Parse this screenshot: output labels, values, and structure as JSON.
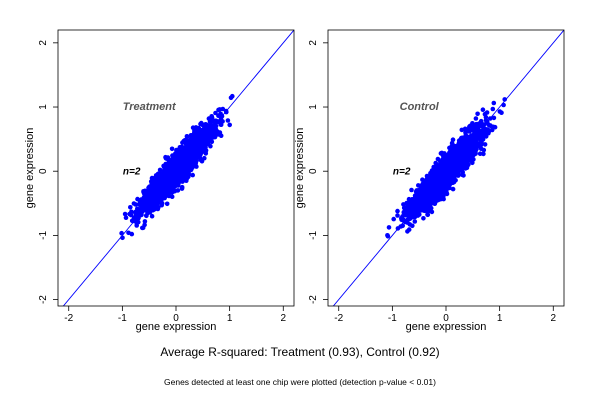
{
  "caption": "Average R-squared: Treatment (0.93), Control (0.92)",
  "footnote": "Genes detected at least one chip were plotted (detection p-value < 0.01)",
  "chart_data": [
    {
      "type": "scatter",
      "panel_label": "Treatment",
      "inner_text": "n=2",
      "xlabel": "gene expression",
      "ylabel": "gene expression",
      "xlim": [
        -2.2,
        2.2
      ],
      "ylim": [
        -2.1,
        2.2
      ],
      "xticks": [
        -2,
        -1,
        0,
        1,
        2
      ],
      "yticks": [
        -2,
        -1,
        0,
        1,
        2
      ],
      "reference_line": {
        "slope": 1,
        "intercept": 0
      },
      "point_color": "#0000ff",
      "line_color": "#0000ff",
      "point_cloud": {
        "x_range": [
          -1.15,
          1.2
        ],
        "y_range": [
          -1.12,
          1.22
        ],
        "correlation": 0.93
      }
    },
    {
      "type": "scatter",
      "panel_label": "Control",
      "inner_text": "n=2",
      "xlabel": "gene expression",
      "ylabel": "gene expression",
      "xlim": [
        -2.2,
        2.2
      ],
      "ylim": [
        -2.1,
        2.2
      ],
      "xticks": [
        -2,
        -1,
        0,
        1,
        2
      ],
      "yticks": [
        -2,
        -1,
        0,
        1,
        2
      ],
      "reference_line": {
        "slope": 1,
        "intercept": 0
      },
      "point_color": "#0000ff",
      "line_color": "#0000ff",
      "point_cloud": {
        "x_range": [
          -1.15,
          1.15
        ],
        "y_range": [
          -1.15,
          1.12
        ],
        "correlation": 0.92
      }
    }
  ]
}
